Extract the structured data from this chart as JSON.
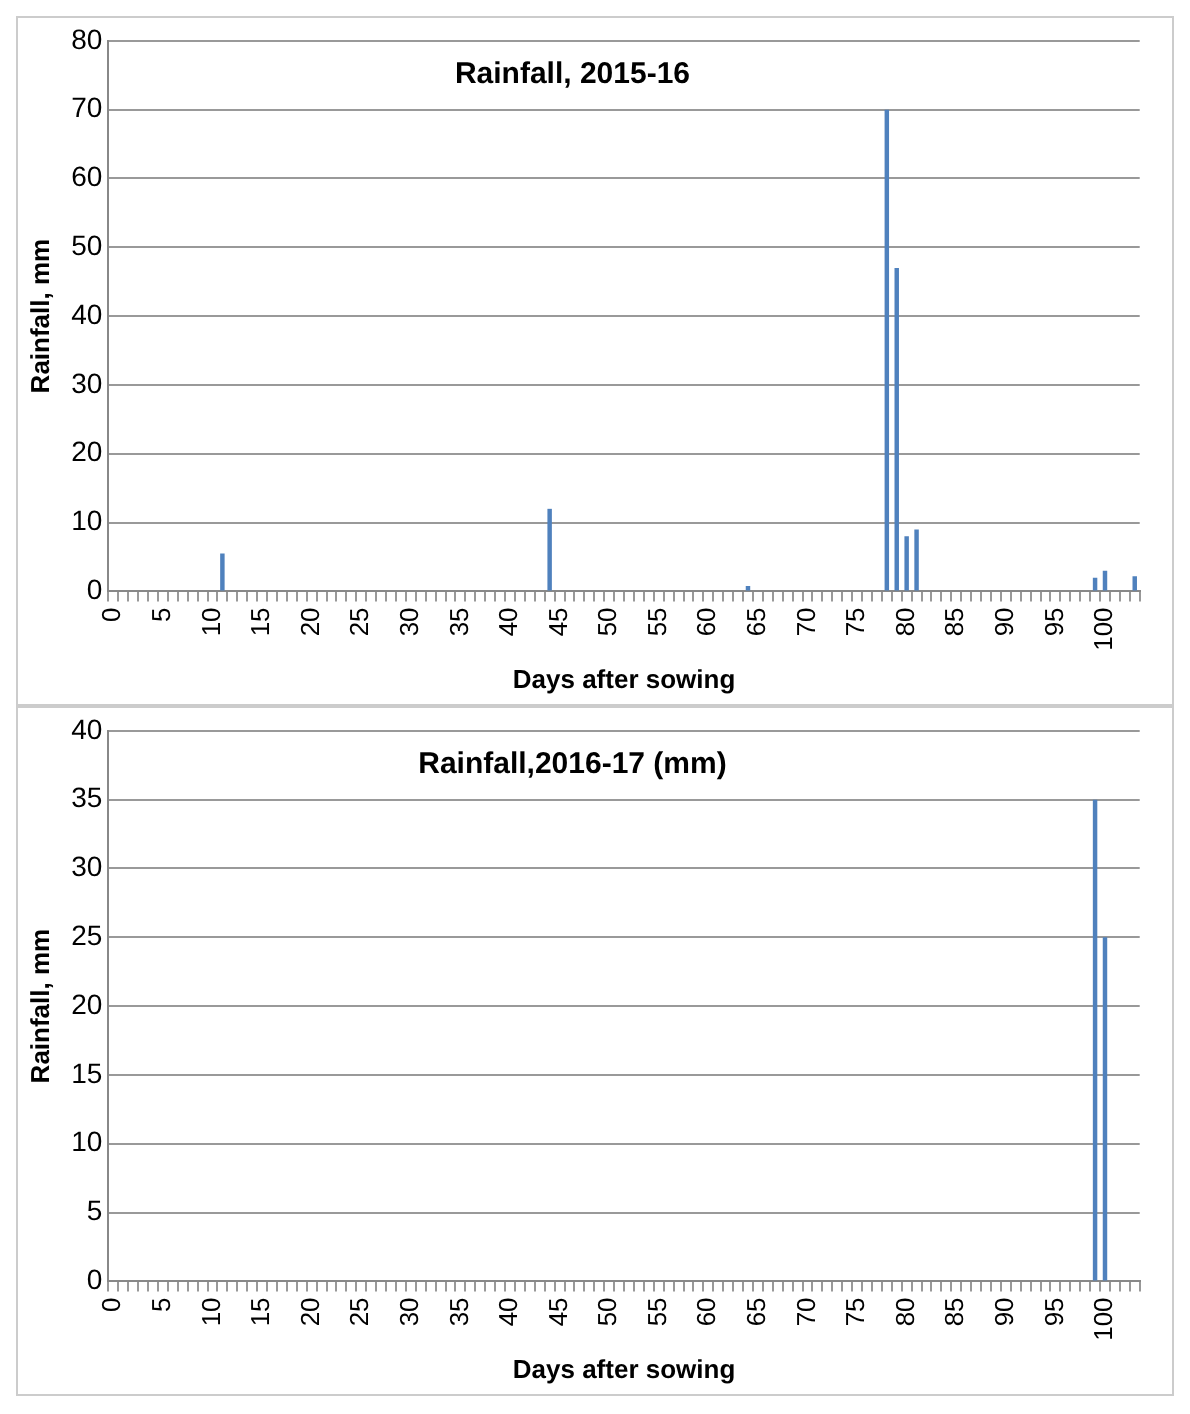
{
  "chart_data": [
    {
      "type": "bar",
      "title": "Rainfall, 2015-16",
      "xlabel": "Days after sowing",
      "ylabel": "Rainfall, mm",
      "categories": [
        "0",
        null,
        null,
        null,
        null,
        "5",
        null,
        null,
        null,
        null,
        "10",
        null,
        null,
        null,
        null,
        "15",
        null,
        null,
        null,
        null,
        "20",
        null,
        null,
        null,
        null,
        "25",
        null,
        null,
        null,
        null,
        "30",
        null,
        null,
        null,
        null,
        "35",
        null,
        null,
        null,
        null,
        "40",
        null,
        null,
        null,
        null,
        "45",
        null,
        null,
        null,
        null,
        "50",
        null,
        null,
        null,
        null,
        "55",
        null,
        null,
        null,
        null,
        "60",
        null,
        null,
        null,
        null,
        "65",
        null,
        null,
        null,
        null,
        "70",
        null,
        null,
        null,
        null,
        "75",
        null,
        null,
        null,
        null,
        "80",
        null,
        null,
        null,
        null,
        "85",
        null,
        null,
        null,
        null,
        "90",
        null,
        null,
        null,
        null,
        "95",
        null,
        null,
        null,
        null,
        "100",
        null,
        null,
        null
      ],
      "values": [
        0,
        0,
        0,
        0,
        0,
        0,
        0,
        0,
        0,
        0,
        0,
        5.5,
        0,
        0,
        0,
        0,
        0,
        0,
        0,
        0,
        0,
        0,
        0,
        0,
        0,
        0,
        0,
        0,
        0,
        0,
        0,
        0,
        0,
        0,
        0,
        0,
        0,
        0,
        0,
        0,
        0,
        0,
        0,
        0,
        12,
        0,
        0,
        0,
        0,
        0,
        0,
        0,
        0,
        0,
        0,
        0,
        0,
        0,
        0,
        0,
        0,
        0,
        0,
        0,
        0.8,
        0,
        0,
        0,
        0,
        0,
        0,
        0,
        0,
        0,
        0,
        0,
        0,
        0,
        70,
        47,
        8,
        9,
        0,
        0,
        0,
        0,
        0,
        0,
        0,
        0,
        0,
        0,
        0,
        0,
        0,
        0,
        0,
        0,
        0,
        2,
        3,
        0,
        0,
        2.2
      ],
      "color": "#4f81bd",
      "ylim": [
        0,
        80
      ],
      "yticks": [
        0,
        10,
        20,
        30,
        40,
        50,
        60,
        70,
        80
      ],
      "grid": "y"
    },
    {
      "type": "bar",
      "title": "Rainfall,2016-17 (mm)",
      "xlabel": "Days after sowing",
      "ylabel": "Rainfall, mm",
      "categories": [
        "0",
        null,
        null,
        null,
        null,
        "5",
        null,
        null,
        null,
        null,
        "10",
        null,
        null,
        null,
        null,
        "15",
        null,
        null,
        null,
        null,
        "20",
        null,
        null,
        null,
        null,
        "25",
        null,
        null,
        null,
        null,
        "30",
        null,
        null,
        null,
        null,
        "35",
        null,
        null,
        null,
        null,
        "40",
        null,
        null,
        null,
        null,
        "45",
        null,
        null,
        null,
        null,
        "50",
        null,
        null,
        null,
        null,
        "55",
        null,
        null,
        null,
        null,
        "60",
        null,
        null,
        null,
        null,
        "65",
        null,
        null,
        null,
        null,
        "70",
        null,
        null,
        null,
        null,
        "75",
        null,
        null,
        null,
        null,
        "80",
        null,
        null,
        null,
        null,
        "85",
        null,
        null,
        null,
        null,
        "90",
        null,
        null,
        null,
        null,
        "95",
        null,
        null,
        null,
        null,
        "100",
        null,
        null,
        null
      ],
      "values": [
        0,
        0,
        0,
        0,
        0,
        0,
        0,
        0,
        0,
        0,
        0,
        0,
        0,
        0,
        0,
        0,
        0,
        0,
        0,
        0,
        0,
        0,
        0,
        0,
        0,
        0,
        0,
        0,
        0,
        0,
        0,
        0,
        0,
        0,
        0,
        0,
        0,
        0,
        0,
        0,
        0,
        0,
        0,
        0,
        0,
        0,
        0,
        0,
        0,
        0,
        0,
        0,
        0,
        0,
        0,
        0,
        0,
        0,
        0,
        0,
        0,
        0,
        0,
        0,
        0,
        0,
        0,
        0,
        0,
        0,
        0,
        0,
        0,
        0,
        0,
        0,
        0,
        0,
        0,
        0,
        0,
        0,
        0,
        0,
        0,
        0,
        0,
        0,
        0,
        0,
        0,
        0,
        0,
        0,
        0,
        0,
        0,
        0,
        0,
        35,
        25,
        0,
        0,
        0
      ],
      "color": "#4f81bd",
      "ylim": [
        0,
        40
      ],
      "yticks": [
        0,
        5,
        10,
        15,
        20,
        25,
        30,
        35,
        40
      ],
      "grid": "y"
    }
  ]
}
